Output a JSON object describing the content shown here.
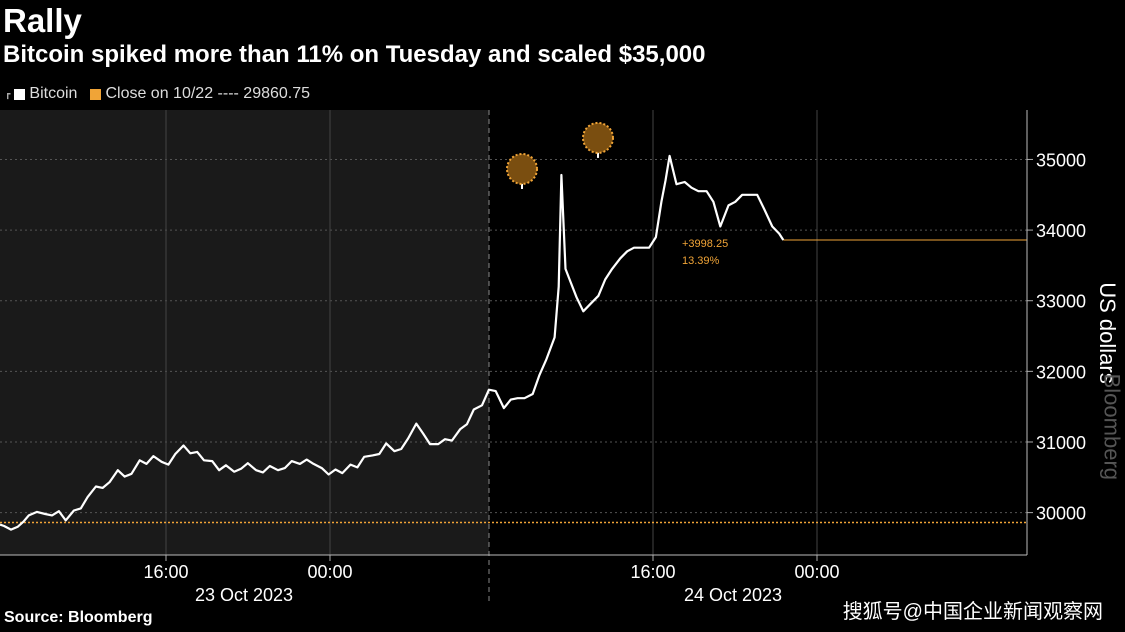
{
  "header": {
    "title": "Rally",
    "subtitle": "Bitcoin spiked more than 11% on Tuesday and scaled $35,000"
  },
  "legend": {
    "series_label": "Bitcoin",
    "close_label": "Close on 10/22 ---- 29860.75"
  },
  "footer": {
    "source": "Source: Bloomberg",
    "watermark": "搜狐号@中国企业新闻观察网",
    "brand": "Bloomberg"
  },
  "annotation": {
    "change_value": "+3998.25",
    "change_pct": "13.39%"
  },
  "colors": {
    "line": "#ffffff",
    "accent": "#f0a437",
    "shaded_bg": "#1a1a1a",
    "bg": "#000000",
    "grid": "#555555"
  },
  "chart_data": {
    "type": "line",
    "title": "Rally",
    "subtitle": "Bitcoin spiked more than 11% on Tuesday and scaled $35,000",
    "ylabel": "US dollars",
    "ylim": [
      29400,
      35700
    ],
    "y_ticks": [
      30000,
      31000,
      32000,
      33000,
      34000,
      35000
    ],
    "x_ticks": [
      "16:00",
      "00:00",
      "16:00",
      "00:00"
    ],
    "x_date_labels": [
      "23 Oct 2023",
      "24 Oct 2023"
    ],
    "reference_line": {
      "name": "Close on 10/22",
      "value": 29860.75
    },
    "last_value": 33859,
    "grid": true,
    "legend_position": "top-left",
    "series": [
      {
        "name": "Bitcoin",
        "x_hours_from_start": [
          0,
          0.3,
          0.8,
          1.3,
          1.7,
          2.1,
          2.7,
          3.3,
          3.8,
          4.3,
          4.8,
          5.4,
          5.9,
          6.4,
          7.0,
          7.5,
          8.0,
          8.6,
          9.1,
          9.6,
          10.2,
          10.7,
          11.2,
          11.8,
          12.3,
          12.8,
          13.4,
          13.9,
          14.4,
          14.9,
          15.5,
          16.0,
          16.5,
          17.1,
          17.6,
          18.1,
          18.7,
          19.2,
          19.7,
          20.3,
          20.8,
          21.3,
          21.9,
          22.4,
          22.9,
          23.5,
          24.0,
          24.5,
          25.0,
          25.6,
          26.1,
          26.6,
          27.2,
          27.7,
          28.2,
          28.8,
          29.3,
          29.8,
          30.4,
          30.9,
          31.4,
          32.0,
          32.5,
          33.0,
          33.6,
          34.1,
          34.6,
          35.2,
          35.7,
          36.2,
          36.8,
          37.3,
          37.8,
          38.3,
          38.9,
          39.4,
          39.9,
          40.5,
          40.8,
          41.0,
          41.3,
          41.6,
          42.1,
          42.6,
          43.1,
          43.7,
          44.2,
          44.7,
          45.3,
          45.8,
          46.3,
          46.9,
          47.4,
          47.9,
          48.3,
          48.6,
          48.9,
          49.4,
          50.0,
          50.5,
          51.0,
          51.6,
          52.1,
          52.6,
          53.2,
          53.7,
          54.2,
          54.8,
          55.3,
          55.8,
          56.4,
          56.9,
          57.2
        ],
        "values": [
          29830,
          29810,
          29760,
          29800,
          29870,
          29960,
          30010,
          29980,
          29960,
          30020,
          29890,
          30030,
          30060,
          30220,
          30370,
          30350,
          30430,
          30600,
          30510,
          30550,
          30740,
          30690,
          30800,
          30720,
          30680,
          30830,
          30950,
          30840,
          30860,
          30740,
          30730,
          30600,
          30670,
          30580,
          30620,
          30700,
          30600,
          30570,
          30660,
          30600,
          30630,
          30730,
          30690,
          30750,
          30690,
          30630,
          30540,
          30610,
          30560,
          30680,
          30640,
          30790,
          30810,
          30830,
          30980,
          30870,
          30900,
          31050,
          31260,
          31120,
          30970,
          30970,
          31040,
          31020,
          31180,
          31250,
          31460,
          31520,
          31740,
          31720,
          31480,
          31600,
          31620,
          31620,
          31680,
          31950,
          32170,
          32480,
          33200,
          34780,
          33450,
          33300,
          33050,
          32850,
          32950,
          33070,
          33300,
          33450,
          33600,
          33700,
          33750,
          33750,
          33750,
          33900,
          34400,
          34700,
          35050,
          34650,
          34680,
          34600,
          34550,
          34550,
          34400,
          34050,
          34350,
          34400,
          34500,
          34500,
          34500,
          34300,
          34050,
          33950,
          33859
        ]
      }
    ],
    "annotated_peaks": [
      34780,
      35220
    ]
  }
}
